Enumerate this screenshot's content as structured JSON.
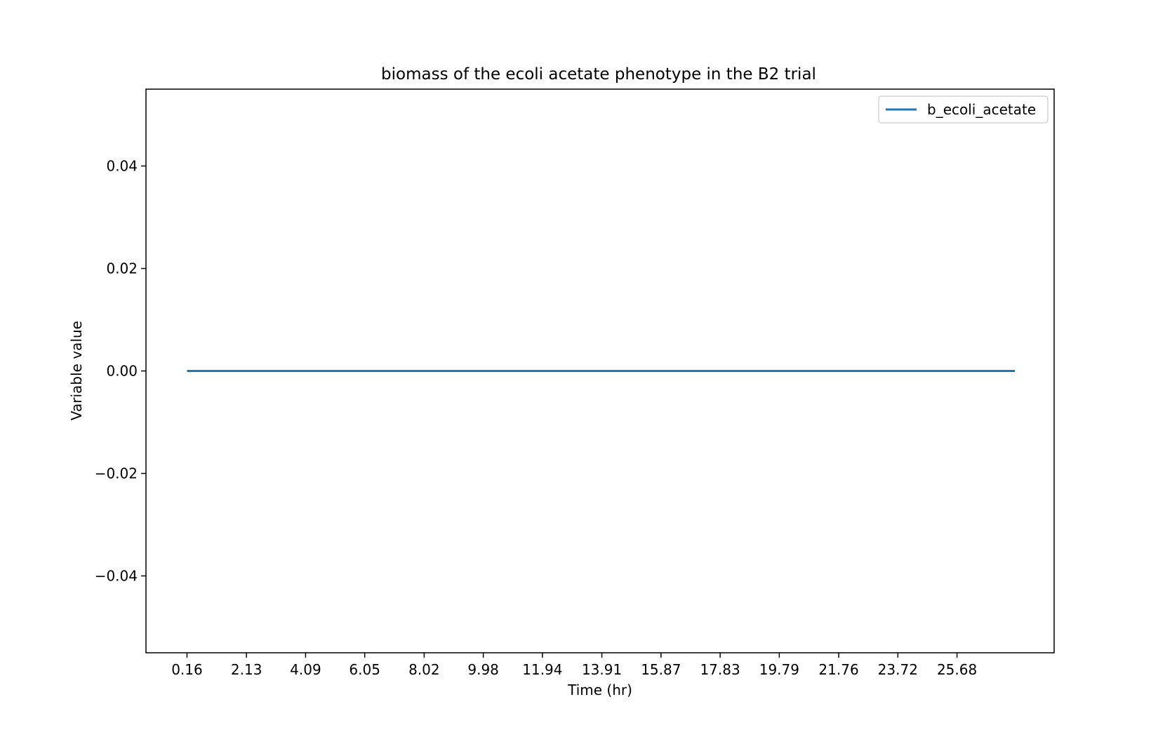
{
  "chart_data": {
    "type": "line",
    "title": "biomass of the ecoli acetate phenotype in the B2 trial",
    "xlabel": "Time (hr)",
    "ylabel": "Variable value",
    "x_ticks": [
      "0.16",
      "2.13",
      "4.09",
      "6.05",
      "8.02",
      "9.98",
      "11.94",
      "13.91",
      "15.87",
      "17.83",
      "19.79",
      "21.76",
      "23.72",
      "25.68"
    ],
    "y_ticks": [
      "−0.04",
      "−0.02",
      "0.00",
      "0.02",
      "0.04"
    ],
    "y_tick_values": [
      -0.04,
      -0.02,
      0.0,
      0.02,
      0.04
    ],
    "ylim": [
      -0.055,
      0.055
    ],
    "xlim": [
      -1.2,
      28.9
    ],
    "grid": false,
    "legend_position": "top-right",
    "series": [
      {
        "name": "b_ecoli_acetate",
        "color": "#1f77b4",
        "x": [
          0.16,
          27.6
        ],
        "y": [
          0.0,
          0.0
        ]
      }
    ]
  }
}
